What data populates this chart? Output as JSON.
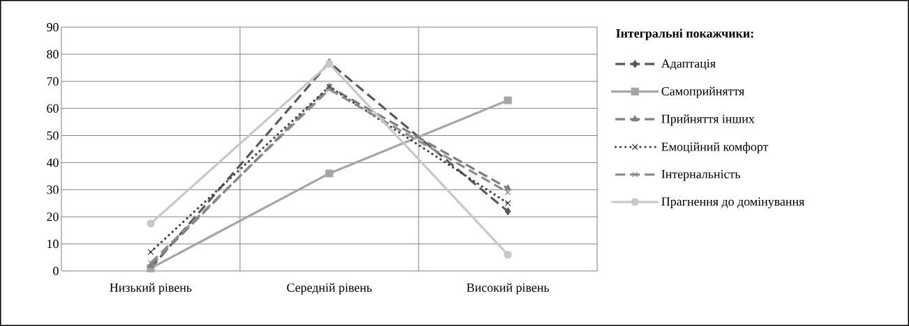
{
  "chart_data": {
    "type": "line",
    "legend_title": "Інтегральні покажчики:",
    "categories": [
      "Низький рівень",
      "Середній рівень",
      "Високий рівень"
    ],
    "series": [
      {
        "name": "Адаптація",
        "color": "#595959",
        "line_style": "dashed",
        "marker": "diamond",
        "values": [
          1,
          77,
          22
        ]
      },
      {
        "name": "Самоприйняття",
        "color": "#a6a6a6",
        "line_style": "solid",
        "marker": "square",
        "values": [
          1,
          36,
          63
        ]
      },
      {
        "name": "Прийняття інших",
        "color": "#7f7f7f",
        "line_style": "dashed",
        "marker": "triangle",
        "values": [
          2,
          68,
          30.5
        ]
      },
      {
        "name": "Емоційний комфорт",
        "color": "#404040",
        "line_style": "dotted",
        "marker": "cross",
        "values": [
          7,
          68,
          25
        ]
      },
      {
        "name": "Інтернальність",
        "color": "#8c8c8c",
        "line_style": "dashed",
        "marker": "cross",
        "values": [
          3,
          67,
          29
        ]
      },
      {
        "name": "Прагнення до домінування",
        "color": "#c8c8c8",
        "line_style": "solid",
        "marker": "circle",
        "values": [
          17.5,
          76.5,
          6
        ]
      }
    ],
    "ylim": [
      0,
      90
    ],
    "yticks": [
      0,
      10,
      20,
      30,
      40,
      50,
      60,
      70,
      80,
      90
    ],
    "grid": true,
    "legend": "right"
  }
}
